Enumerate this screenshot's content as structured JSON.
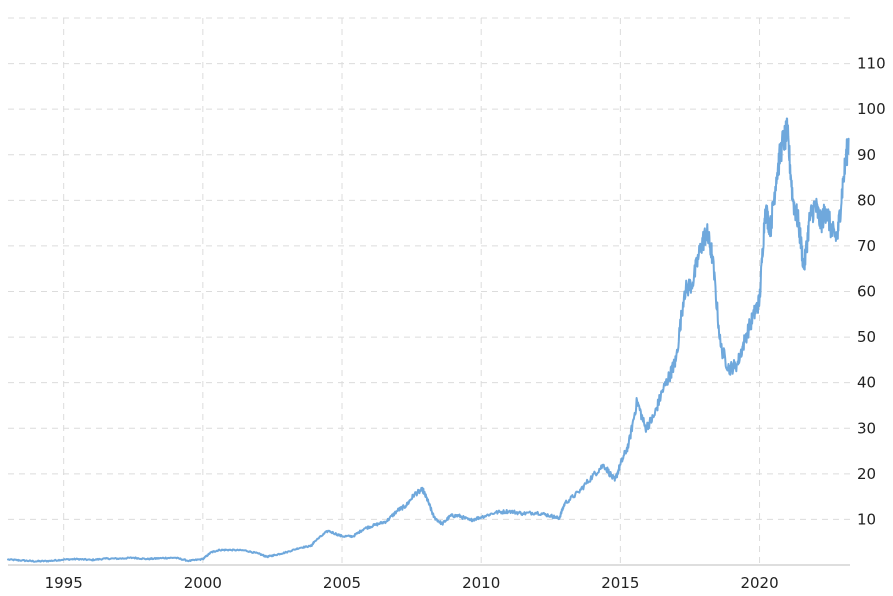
{
  "chart_data": {
    "type": "line",
    "title": "",
    "xlabel": "",
    "ylabel": "",
    "x_ticks": [
      "1995",
      "2000",
      "2005",
      "2010",
      "2015",
      "2020"
    ],
    "y_ticks": [
      10,
      20,
      30,
      40,
      50,
      60,
      70,
      80,
      90,
      100,
      110
    ],
    "xlim": [
      1993.0,
      2023.25
    ],
    "ylim": [
      0,
      120
    ],
    "grid": true,
    "line_color": "#6fa8dc",
    "series": [
      {
        "x": [
          1993.0,
          1993.5,
          1994.0,
          1994.5,
          1995.0,
          1995.5,
          1996.0,
          1996.5,
          1997.0,
          1997.5,
          1998.0,
          1998.5,
          1999.0,
          1999.5,
          2000.0,
          2000.3,
          2000.6,
          2001.0,
          2001.5,
          2002.0,
          2002.3,
          2002.6,
          2003.0,
          2003.5,
          2003.9,
          2004.0,
          2004.5,
          2005.0,
          2005.4,
          2005.8,
          2006.2,
          2006.6,
          2007.0,
          2007.3,
          2007.6,
          2007.9,
          2008.1,
          2008.3,
          2008.6,
          2008.9,
          2009.2,
          2009.6,
          2010.0,
          2010.5,
          2011.0,
          2011.5,
          2012.0,
          2012.5,
          2012.8,
          2013.0,
          2013.5,
          2014.0,
          2014.4,
          2014.8,
          2015.0,
          2015.3,
          2015.6,
          2015.9,
          2016.2,
          2016.5,
          2016.8,
          2017.0,
          2017.3,
          2017.6,
          2017.9,
          2018.1,
          2018.3,
          2018.6,
          2018.9,
          2019.2,
          2019.5,
          2019.8,
          2020.0,
          2020.2,
          2020.4,
          2020.6,
          2020.8,
          2021.0,
          2021.2,
          2021.4,
          2021.6,
          2021.8,
          2022.0,
          2022.2,
          2022.4,
          2022.6,
          2022.8,
          2023.0,
          2023.2
        ],
        "y": [
          1.2,
          1.0,
          0.8,
          0.9,
          1.2,
          1.3,
          1.1,
          1.4,
          1.4,
          1.6,
          1.3,
          1.5,
          1.6,
          0.9,
          1.3,
          2.8,
          3.3,
          3.3,
          3.2,
          2.5,
          1.8,
          2.2,
          2.8,
          3.8,
          4.2,
          5.1,
          7.5,
          6.3,
          6.3,
          8.0,
          8.8,
          9.6,
          12.0,
          13.0,
          15.5,
          16.5,
          13.8,
          10.5,
          9.0,
          10.8,
          10.8,
          9.8,
          10.5,
          11.5,
          11.8,
          11.3,
          11.5,
          10.8,
          10.2,
          13.5,
          16.0,
          19.5,
          22.0,
          18.5,
          22.0,
          26.5,
          36.0,
          30.0,
          32.5,
          38.0,
          42.0,
          45.0,
          60.0,
          62.0,
          70.0,
          73.0,
          68.0,
          48.0,
          43.0,
          44.0,
          50.0,
          55.0,
          58.0,
          78.0,
          74.0,
          85.0,
          92.0,
          95.0,
          80.0,
          75.0,
          65.0,
          76.0,
          79.0,
          75.0,
          78.0,
          73.0,
          72.0,
          84.0,
          93.5
        ]
      }
    ]
  }
}
